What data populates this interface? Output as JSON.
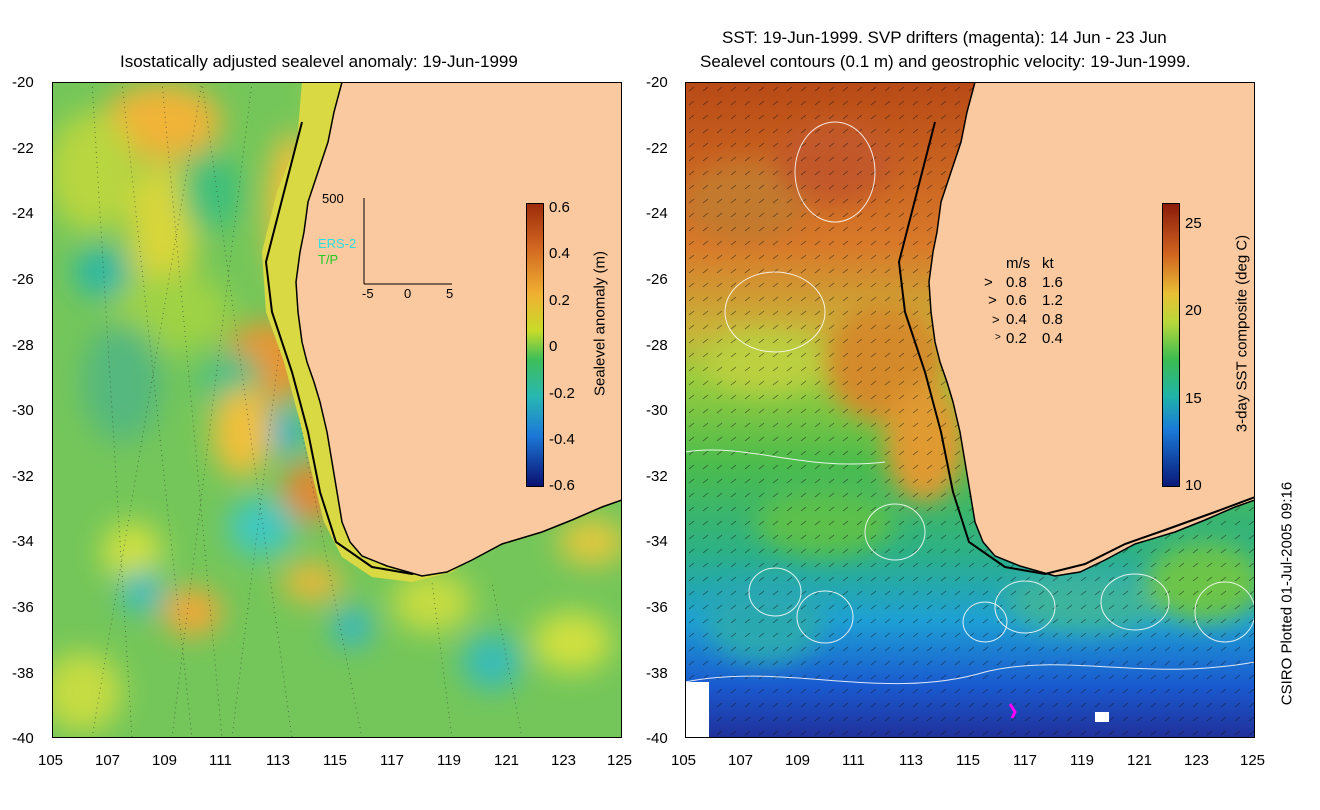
{
  "left_map": {
    "title": "Isostatically adjusted sealevel anomaly: 19-Jun-1999",
    "lat_labels": [
      "-20",
      "-22",
      "-24",
      "-26",
      "-28",
      "-30",
      "-32",
      "-34",
      "-36",
      "-38",
      "-40"
    ],
    "lon_labels": [
      "105",
      "107",
      "109",
      "111",
      "113",
      "115",
      "117",
      "119",
      "121",
      "123",
      "125"
    ],
    "colorbar": {
      "label": "Sealevel anomaly (m)",
      "ticks": [
        "0.6",
        "0.4",
        "0.2",
        "0",
        "-0.2",
        "-0.4",
        "-0.6"
      ]
    },
    "inset": {
      "y_max_label": "500",
      "x_labels": [
        "-5",
        "0",
        "5"
      ],
      "legend_ers": "ERS-2",
      "legend_tp": "T/P",
      "ers_color": "#28e0e0",
      "tp_color": "#22cc22"
    }
  },
  "right_map": {
    "title_line1": "SST: 19-Jun-1999. SVP drifters (magenta): 14 Jun - 23 Jun",
    "title_line2": "Sealevel contours (0.1 m) and geostrophic velocity: 19-Jun-1999.",
    "lat_labels": [
      "-20",
      "-22",
      "-24",
      "-26",
      "-28",
      "-30",
      "-32",
      "-34",
      "-36",
      "-38",
      "-40"
    ],
    "lon_labels": [
      "105",
      "107",
      "109",
      "111",
      "113",
      "115",
      "117",
      "119",
      "121",
      "123",
      "125"
    ],
    "colorbar": {
      "label": "3-day SST composite (deg C)",
      "ticks": [
        "25",
        "20",
        "15",
        "10"
      ]
    },
    "velocity_key": {
      "header_ms": "m/s",
      "header_kt": "kt",
      "rows": [
        {
          "ms": "0.8",
          "kt": "1.6"
        },
        {
          "ms": "0.6",
          "kt": "1.2"
        },
        {
          "ms": "0.4",
          "kt": "0.8"
        },
        {
          "ms": "0.2",
          "kt": "0.4"
        }
      ]
    }
  },
  "credit": "CSIRO Plotted 01-Jul-2005 09:16",
  "colors": {
    "land": "#fac9a0",
    "ocean_green": "#6ec85a",
    "drifter": "#ff00ff"
  }
}
